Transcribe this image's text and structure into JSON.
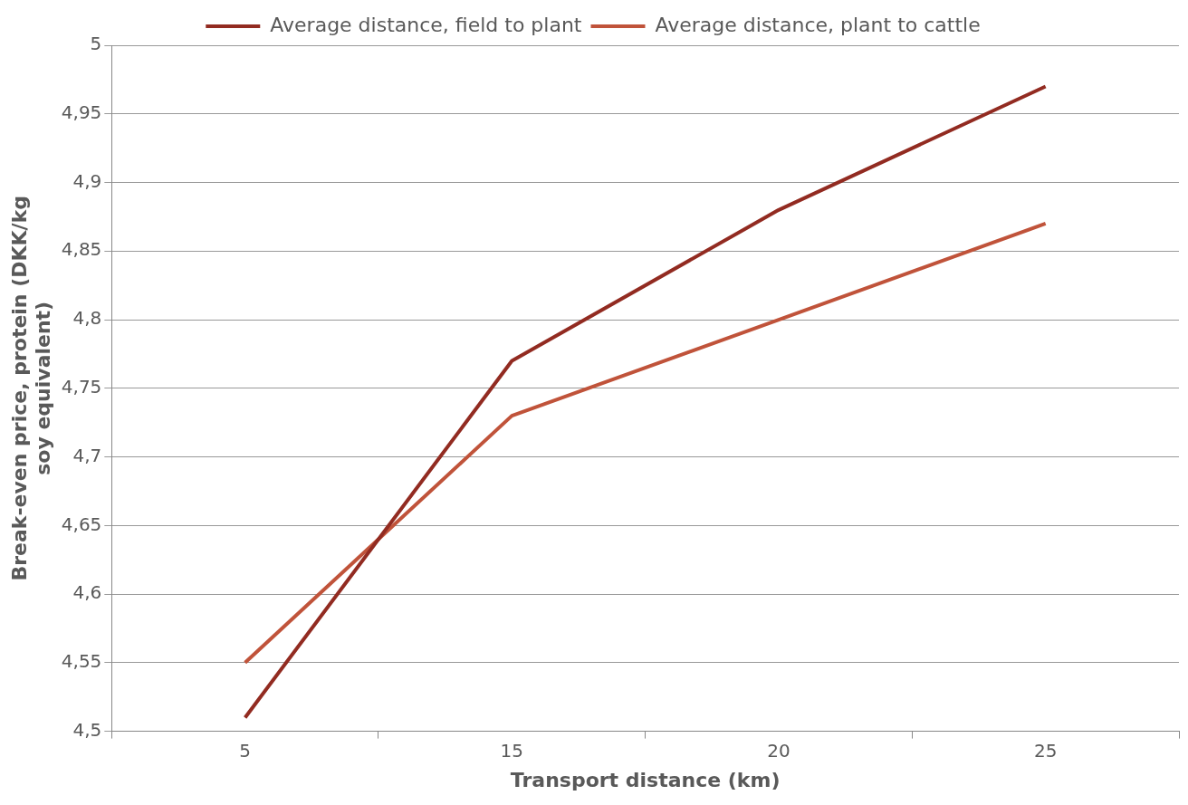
{
  "chart_data": {
    "type": "line",
    "xlabel": "Transport distance (km)",
    "ylabel": "Break-even price, protein (DKK/kg soy equivalent)",
    "categories": [
      "5",
      "15",
      "20",
      "25"
    ],
    "series": [
      {
        "name": "Average distance, field to plant",
        "color": "#922b21",
        "values": [
          4.51,
          4.77,
          4.88,
          4.97
        ]
      },
      {
        "name": "Average distance, plant to cattle",
        "color": "#c0533a",
        "values": [
          4.55,
          4.73,
          4.8,
          4.87
        ]
      }
    ],
    "ylim": [
      4.5,
      5
    ],
    "yticks": [
      {
        "value": 4.5,
        "label": "4,5"
      },
      {
        "value": 4.55,
        "label": "4,55"
      },
      {
        "value": 4.6,
        "label": "4,6"
      },
      {
        "value": 4.65,
        "label": "4,65"
      },
      {
        "value": 4.7,
        "label": "4,7"
      },
      {
        "value": 4.75,
        "label": "4,75"
      },
      {
        "value": 4.8,
        "label": "4,8"
      },
      {
        "value": 4.85,
        "label": "4,85"
      },
      {
        "value": 4.9,
        "label": "4,9"
      },
      {
        "value": 4.95,
        "label": "4,95"
      },
      {
        "value": 5,
        "label": "5"
      }
    ],
    "grid": "y",
    "legend": "top",
    "marker": "none",
    "line_style": "solid"
  }
}
